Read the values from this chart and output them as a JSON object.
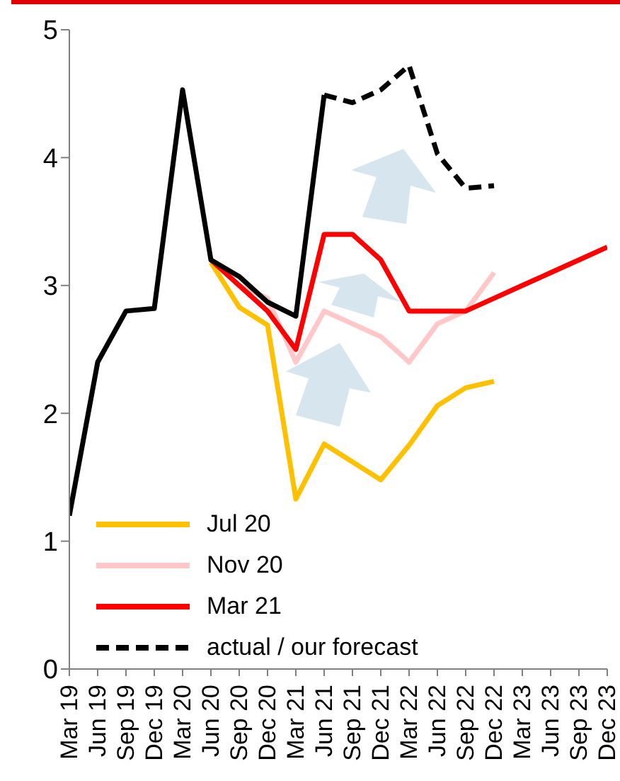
{
  "chart_data": {
    "type": "line",
    "categories": [
      "Mar 19",
      "Jun 19",
      "Sep 19",
      "Dec 19",
      "Mar 20",
      "Jun 20",
      "Sep 20",
      "Dec 20",
      "Mar 21",
      "Jun 21",
      "Sep 21",
      "Dec 21",
      "Mar 22",
      "Jun 22",
      "Sep 22",
      "Dec 22",
      "Mar 23",
      "Jun 23",
      "Sep 23",
      "Dec 23"
    ],
    "ylim": [
      0,
      5
    ],
    "yticks": [
      0,
      1,
      2,
      3,
      4,
      5
    ],
    "grid": false,
    "legend": "bottom left",
    "series": [
      {
        "name": "Jul 20",
        "color": "#ffc000",
        "line_style": "solid",
        "values": [
          null,
          null,
          null,
          null,
          null,
          3.18,
          2.83,
          2.69,
          1.33,
          1.76,
          1.62,
          1.48,
          1.75,
          2.06,
          2.2,
          2.25,
          null,
          null,
          null,
          null
        ]
      },
      {
        "name": "Nov 20",
        "color": "#ffc7c7",
        "line_style": "solid",
        "values": [
          null,
          null,
          null,
          null,
          null,
          3.2,
          3.0,
          2.9,
          2.4,
          2.8,
          2.7,
          2.6,
          2.4,
          2.7,
          2.8,
          3.1,
          null,
          null,
          null,
          null
        ]
      },
      {
        "name": "Mar 21",
        "color": "#ff0000",
        "line_style": "solid",
        "values": [
          null,
          null,
          null,
          null,
          null,
          3.2,
          3.0,
          2.8,
          2.5,
          3.4,
          3.4,
          3.2,
          2.8,
          2.8,
          2.8,
          2.9,
          3.0,
          3.1,
          3.2,
          3.3
        ]
      },
      {
        "color": "#000000",
        "line_style": "solid",
        "values": [
          1.2,
          2.4,
          2.8,
          2.82,
          4.53,
          3.2,
          3.07,
          2.87,
          2.76,
          4.49,
          null,
          null,
          null,
          null,
          null,
          null,
          null,
          null,
          null,
          null
        ]
      },
      {
        "name": "actual / our forecast",
        "color": "#000000",
        "line_style": "dashed",
        "values": [
          null,
          null,
          null,
          null,
          null,
          null,
          null,
          null,
          null,
          4.49,
          4.43,
          4.53,
          4.72,
          4.03,
          3.76,
          3.78,
          null,
          null,
          null,
          null
        ]
      }
    ]
  }
}
